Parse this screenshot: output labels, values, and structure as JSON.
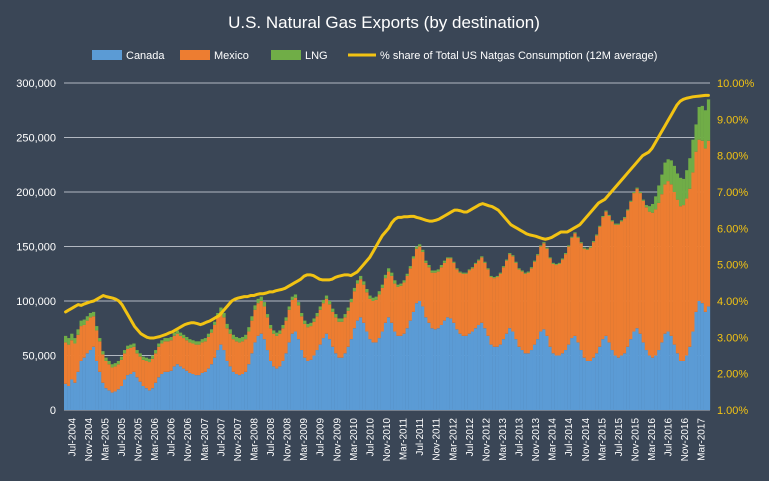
{
  "colors": {
    "background": "#3a4656",
    "canada": "#5b9bd5",
    "mexico": "#ed7d31",
    "lng": "#70ad47",
    "share": "#f2c313",
    "grid": "#c8cdd4"
  },
  "chart_data": {
    "type": "bar",
    "stacked": true,
    "title": "U.S. Natural Gas Exports (by destination)",
    "legend_position": "top",
    "grid": true,
    "y_left": {
      "min": 0,
      "max": 300000,
      "ticks": [
        0,
        50000,
        100000,
        150000,
        200000,
        250000,
        300000
      ],
      "tick_labels": [
        "0",
        "50,000",
        "100,000",
        "150,000",
        "200,000",
        "250,000",
        "300,000"
      ]
    },
    "y_right": {
      "min": 1,
      "max": 10,
      "ticks": [
        1,
        2,
        3,
        4,
        5,
        6,
        7,
        8,
        9,
        10
      ],
      "tick_labels": [
        "1.00%",
        "2.00%",
        "3.00%",
        "4.00%",
        "5.00%",
        "6.00%",
        "7.00%",
        "8.00%",
        "9.00%",
        "10.00%"
      ]
    },
    "x_tick_labels": [
      "Jul-2004",
      "Nov-2004",
      "Mar-2005",
      "Jul-2005",
      "Nov-2005",
      "Mar-2006",
      "Jul-2006",
      "Nov-2006",
      "Mar-2007",
      "Jul-2007",
      "Nov-2007",
      "Mar-2008",
      "Jul-2008",
      "Nov-2008",
      "Mar-2009",
      "Jul-2009",
      "Nov-2009",
      "Mar-2010",
      "Jul-2010",
      "Nov-2010",
      "Mar-2011",
      "Jul-2011",
      "Nov-2011",
      "Mar-2012",
      "Jul-2012",
      "Nov-2012",
      "Mar-2013",
      "Jul-2013",
      "Nov-2013",
      "Mar-2014",
      "Jul-2014",
      "Nov-2014",
      "Mar-2015",
      "Jul-2015",
      "Nov-2015",
      "Mar-2016",
      "Jul-2016",
      "Nov-2016",
      "Mar-2017"
    ],
    "series": [
      {
        "name": "Canada",
        "axis": "left",
        "kind": "bar",
        "values": [
          24000,
          22000,
          28000,
          25000,
          35000,
          45000,
          48000,
          52000,
          55000,
          58000,
          45000,
          35000,
          25000,
          20000,
          18000,
          16000,
          17000,
          19000,
          22000,
          28000,
          32000,
          33000,
          35000,
          30000,
          26000,
          22000,
          20000,
          18000,
          20000,
          25000,
          30000,
          33000,
          35000,
          35000,
          36000,
          40000,
          42000,
          40000,
          38000,
          36000,
          34000,
          33000,
          32000,
          32000,
          34000,
          35000,
          38000,
          42000,
          48000,
          55000,
          60000,
          55000,
          45000,
          40000,
          35000,
          33000,
          32000,
          33000,
          35000,
          42000,
          52000,
          62000,
          68000,
          70000,
          65000,
          55000,
          45000,
          40000,
          38000,
          40000,
          45000,
          52000,
          62000,
          70000,
          72000,
          65000,
          55000,
          48000,
          45000,
          46000,
          50000,
          55000,
          60000,
          66000,
          70000,
          65000,
          58000,
          52000,
          48000,
          48000,
          52000,
          58000,
          65000,
          75000,
          82000,
          85000,
          80000,
          72000,
          65000,
          62000,
          62000,
          66000,
          72000,
          80000,
          85000,
          80000,
          72000,
          68000,
          68000,
          70000,
          75000,
          82000,
          90000,
          98000,
          100000,
          95000,
          85000,
          80000,
          75000,
          74000,
          75000,
          78000,
          82000,
          85000,
          84000,
          80000,
          74000,
          70000,
          68000,
          68000,
          70000,
          72000,
          75000,
          78000,
          80000,
          75000,
          68000,
          60000,
          58000,
          58000,
          60000,
          65000,
          70000,
          75000,
          72000,
          65000,
          58000,
          55000,
          52000,
          52000,
          55000,
          60000,
          65000,
          72000,
          74000,
          68000,
          58000,
          52000,
          50000,
          50000,
          52000,
          55000,
          60000,
          66000,
          68000,
          62000,
          55000,
          48000,
          45000,
          45000,
          48000,
          52000,
          58000,
          65000,
          68000,
          62000,
          55000,
          50000,
          48000,
          50000,
          52000,
          58000,
          65000,
          72000,
          75000,
          70000,
          62000,
          55000,
          50000,
          48000,
          50000,
          55000,
          62000,
          70000,
          72000,
          68000,
          60000,
          52000,
          45000,
          45000,
          50000,
          58000,
          72000,
          90000,
          100000,
          98000,
          90000,
          95000
        ]
      },
      {
        "name": "Mexico",
        "axis": "left",
        "kind": "bar",
        "values": [
          38000,
          38000,
          36000,
          36000,
          34000,
          32000,
          30000,
          30000,
          30000,
          28000,
          28000,
          28000,
          26000,
          25000,
          24000,
          23000,
          23000,
          23000,
          24000,
          24000,
          24000,
          24000,
          23000,
          22000,
          23000,
          24000,
          25000,
          26000,
          27000,
          27000,
          28000,
          28000,
          28000,
          28000,
          28000,
          28000,
          28000,
          28000,
          28000,
          28000,
          28000,
          28000,
          28000,
          28000,
          28000,
          28000,
          29000,
          29000,
          30000,
          30000,
          30000,
          30000,
          30000,
          30000,
          30000,
          30000,
          30000,
          30000,
          30000,
          30000,
          30000,
          30000,
          30000,
          30000,
          30000,
          30000,
          30000,
          30000,
          30000,
          30000,
          30000,
          30000,
          30000,
          31000,
          31000,
          31000,
          31000,
          31000,
          31000,
          31000,
          31000,
          31000,
          32000,
          32000,
          32000,
          32000,
          32000,
          33000,
          33000,
          33000,
          33000,
          33000,
          34000,
          34000,
          34000,
          35000,
          35000,
          36000,
          37000,
          38000,
          39000,
          40000,
          40000,
          41000,
          42000,
          43000,
          44000,
          45000,
          46000,
          47000,
          48000,
          48000,
          49000,
          50000,
          50000,
          50000,
          50000,
          51000,
          51000,
          52000,
          52000,
          53000,
          53000,
          54000,
          55000,
          55000,
          55000,
          56000,
          57000,
          57000,
          58000,
          58000,
          59000,
          59000,
          60000,
          60000,
          61000,
          62000,
          63000,
          64000,
          65000,
          66000,
          67000,
          68000,
          69000,
          70000,
          71000,
          72000,
          73000,
          74000,
          75000,
          76000,
          77000,
          78000,
          79000,
          80000,
          81000,
          82000,
          83000,
          84000,
          86000,
          88000,
          90000,
          92000,
          94000,
          96000,
          98000,
          100000,
          102000,
          104000,
          106000,
          108000,
          110000,
          112000,
          114000,
          116000,
          118000,
          120000,
          122000,
          123000,
          124000,
          125000,
          126000,
          127000,
          128000,
          129000,
          130000,
          131000,
          132000,
          133000,
          134000,
          135000,
          136000,
          137000,
          138000,
          139000,
          140000,
          141000,
          142000,
          143000,
          144000,
          145000,
          146000,
          147000,
          148000,
          149000,
          150000,
          152000,
          125000,
          130000,
          135000,
          135000,
          140000
        ]
      },
      {
        "name": "LNG",
        "axis": "left",
        "kind": "bar",
        "values": [
          6000,
          6000,
          6000,
          5000,
          5000,
          5000,
          5000,
          4000,
          4000,
          4000,
          4000,
          3000,
          3000,
          3000,
          3000,
          3000,
          3000,
          3000,
          3000,
          3000,
          3000,
          3000,
          3000,
          3000,
          3000,
          3000,
          3000,
          3000,
          3000,
          3000,
          3000,
          3000,
          3000,
          3000,
          3000,
          3000,
          3000,
          3000,
          3000,
          3000,
          3000,
          3000,
          3000,
          3000,
          3000,
          3000,
          3000,
          3000,
          3000,
          4000,
          4000,
          4000,
          4000,
          4000,
          4000,
          4000,
          4000,
          4000,
          4000,
          4000,
          4000,
          4000,
          4000,
          4000,
          4000,
          3000,
          3000,
          3000,
          3000,
          3000,
          3000,
          3000,
          3000,
          3000,
          3000,
          3000,
          3000,
          3000,
          3000,
          3000,
          3000,
          3000,
          3000,
          3000,
          3000,
          3000,
          3000,
          3000,
          3000,
          3000,
          3000,
          3000,
          3000,
          3000,
          3000,
          3000,
          3000,
          3000,
          3000,
          3000,
          3000,
          3000,
          3000,
          3000,
          3000,
          3000,
          3000,
          2000,
          2000,
          2000,
          2000,
          2000,
          2000,
          2000,
          2000,
          2000,
          2000,
          2000,
          2000,
          2000,
          2000,
          2000,
          2000,
          1000,
          1000,
          1000,
          1000,
          1000,
          1000,
          1000,
          1000,
          1000,
          1000,
          1000,
          1000,
          1000,
          1000,
          1000,
          1000,
          1000,
          1000,
          1000,
          1000,
          1000,
          1000,
          1000,
          1000,
          1000,
          1000,
          1000,
          1000,
          1000,
          1000,
          1000,
          1000,
          1000,
          1000,
          1000,
          1000,
          1000,
          1000,
          1000,
          1000,
          1000,
          1000,
          1000,
          1000,
          1000,
          1000,
          1000,
          1000,
          1000,
          1000,
          1000,
          1000,
          1000,
          1000,
          1000,
          1000,
          1000,
          1000,
          1000,
          1000,
          1000,
          1000,
          1000,
          1000,
          2000,
          5000,
          8000,
          12000,
          16000,
          18000,
          20000,
          20000,
          22000,
          24000,
          24000,
          26000,
          24000,
          26000,
          28000,
          30000,
          25000,
          30000,
          32000,
          35000,
          38000
        ]
      },
      {
        "name": "% share of Total US Natgas Consumption (12M average)",
        "axis": "right",
        "kind": "line",
        "values": [
          3.7,
          3.75,
          3.8,
          3.85,
          3.9,
          3.88,
          3.92,
          3.95,
          3.98,
          4.0,
          4.05,
          4.1,
          4.15,
          4.12,
          4.1,
          4.08,
          4.05,
          4.0,
          3.9,
          3.75,
          3.6,
          3.45,
          3.3,
          3.2,
          3.1,
          3.05,
          3.0,
          2.98,
          2.98,
          3.0,
          3.02,
          3.05,
          3.08,
          3.12,
          3.15,
          3.2,
          3.25,
          3.3,
          3.35,
          3.38,
          3.4,
          3.4,
          3.38,
          3.35,
          3.38,
          3.42,
          3.45,
          3.5,
          3.55,
          3.6,
          3.7,
          3.8,
          3.9,
          4.0,
          4.05,
          4.08,
          4.1,
          4.12,
          4.12,
          4.15,
          4.15,
          4.18,
          4.2,
          4.2,
          4.22,
          4.25,
          4.25,
          4.28,
          4.3,
          4.32,
          4.35,
          4.4,
          4.45,
          4.5,
          4.55,
          4.6,
          4.68,
          4.72,
          4.72,
          4.7,
          4.65,
          4.6,
          4.58,
          4.58,
          4.58,
          4.6,
          4.65,
          4.68,
          4.7,
          4.72,
          4.72,
          4.7,
          4.75,
          4.8,
          4.9,
          5.0,
          5.1,
          5.2,
          5.35,
          5.5,
          5.65,
          5.8,
          5.9,
          6.0,
          6.15,
          6.25,
          6.3,
          6.3,
          6.32,
          6.32,
          6.33,
          6.33,
          6.3,
          6.28,
          6.25,
          6.22,
          6.2,
          6.2,
          6.22,
          6.25,
          6.3,
          6.35,
          6.4,
          6.45,
          6.5,
          6.5,
          6.48,
          6.45,
          6.45,
          6.5,
          6.55,
          6.6,
          6.65,
          6.68,
          6.65,
          6.62,
          6.6,
          6.55,
          6.5,
          6.4,
          6.3,
          6.2,
          6.1,
          6.05,
          6.0,
          5.95,
          5.9,
          5.85,
          5.82,
          5.8,
          5.78,
          5.75,
          5.72,
          5.7,
          5.72,
          5.75,
          5.8,
          5.85,
          5.9,
          5.9,
          5.9,
          5.95,
          6.0,
          6.05,
          6.1,
          6.2,
          6.3,
          6.4,
          6.5,
          6.6,
          6.7,
          6.75,
          6.8,
          6.9,
          7.0,
          7.1,
          7.2,
          7.3,
          7.4,
          7.5,
          7.6,
          7.7,
          7.8,
          7.9,
          8.0,
          8.05,
          8.1,
          8.2,
          8.35,
          8.5,
          8.65,
          8.8,
          8.95,
          9.1,
          9.25,
          9.4,
          9.5,
          9.55,
          9.58,
          9.6,
          9.62,
          9.63,
          9.64,
          9.65,
          9.66,
          9.66
        ]
      }
    ]
  }
}
